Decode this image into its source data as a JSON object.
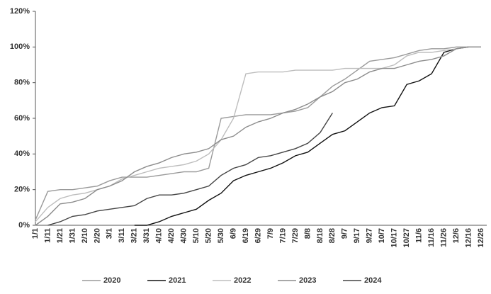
{
  "chart_data": {
    "type": "line",
    "categories": [
      "1/1",
      "1/11",
      "1/21",
      "1/31",
      "2/10",
      "2/20",
      "3/1",
      "3/11",
      "3/21",
      "3/31",
      "4/10",
      "4/20",
      "4/30",
      "5/10",
      "5/20",
      "5/30",
      "6/9",
      "6/19",
      "6/29",
      "7/9",
      "7/19",
      "7/29",
      "8/8",
      "8/18",
      "8/28",
      "9/7",
      "9/17",
      "9/27",
      "10/7",
      "10/17",
      "10/27",
      "11/6",
      "11/16",
      "11/26",
      "12/6",
      "12/16",
      "12/26"
    ],
    "series": [
      {
        "name": "2020",
        "color": "#9a9a9a",
        "values": [
          3,
          19,
          20,
          20,
          21,
          22,
          25,
          27,
          27,
          27,
          28,
          29,
          30,
          30,
          32,
          60,
          61,
          62,
          62,
          62,
          63,
          64,
          66,
          72,
          78,
          82,
          87,
          92,
          93,
          94,
          96,
          98,
          99,
          99,
          100,
          100,
          100
        ]
      },
      {
        "name": "2021",
        "color": "#111111",
        "values": [
          null,
          null,
          null,
          null,
          null,
          null,
          null,
          null,
          0,
          0,
          2,
          5,
          7,
          9,
          14,
          18,
          25,
          28,
          30,
          32,
          35,
          39,
          41,
          46,
          51,
          53,
          58,
          63,
          66,
          67,
          79,
          81,
          85,
          97,
          99,
          100,
          100
        ]
      },
      {
        "name": "2022",
        "color": "#bdbdbd",
        "values": [
          2,
          10,
          15,
          17,
          18,
          20,
          22,
          26,
          28,
          30,
          32,
          33,
          34,
          36,
          40,
          48,
          60,
          85,
          86,
          86,
          86,
          87,
          87,
          87,
          87,
          88,
          88,
          88,
          88,
          90,
          95,
          97,
          97,
          98,
          99,
          100,
          100
        ]
      },
      {
        "name": "2023",
        "color": "#8c8c8c",
        "values": [
          0,
          5,
          12,
          13,
          15,
          20,
          22,
          25,
          30,
          33,
          35,
          38,
          40,
          41,
          43,
          48,
          50,
          55,
          58,
          60,
          63,
          65,
          68,
          72,
          75,
          80,
          82,
          86,
          88,
          88,
          90,
          92,
          93,
          95,
          99,
          100,
          100
        ]
      },
      {
        "name": "2024",
        "color": "#444444",
        "values": [
          null,
          0,
          2,
          5,
          6,
          8,
          9,
          10,
          11,
          15,
          17,
          17,
          18,
          20,
          22,
          28,
          32,
          34,
          38,
          39,
          41,
          43,
          46,
          52,
          63,
          null,
          null,
          null,
          null,
          null,
          null,
          null,
          null,
          null,
          null,
          null,
          null
        ]
      }
    ],
    "ylim": [
      0,
      120
    ],
    "yticks": [
      {
        "value": 0,
        "label": "0%"
      },
      {
        "value": 20,
        "label": "20%"
      },
      {
        "value": 40,
        "label": "40%"
      },
      {
        "value": 60,
        "label": "60%"
      },
      {
        "value": 80,
        "label": "80%"
      },
      {
        "value": 100,
        "label": "100%"
      },
      {
        "value": 120,
        "label": "120%"
      }
    ],
    "legend": "bottom"
  }
}
